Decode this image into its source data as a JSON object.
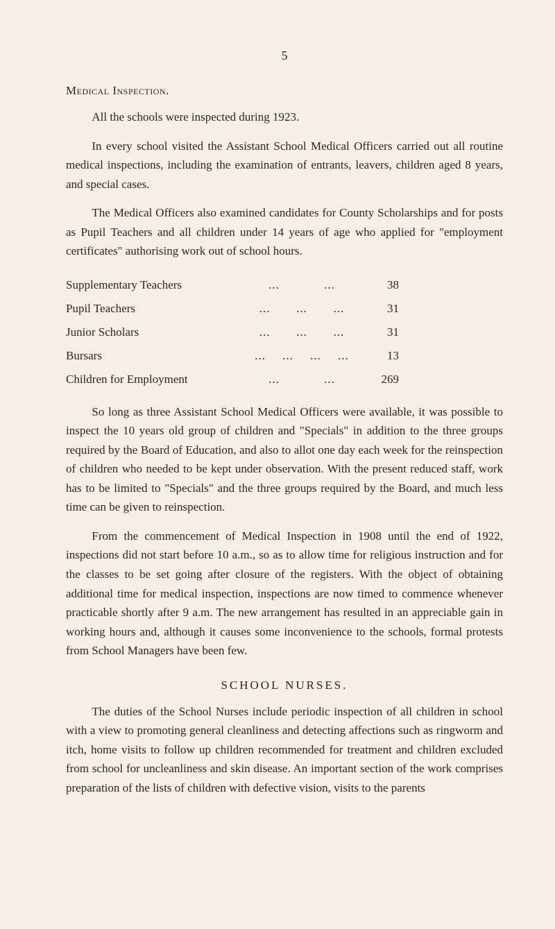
{
  "page": {
    "number": "5",
    "background_color": "#f5f0e6",
    "text_color": "#2a2620"
  },
  "heading1": "Medical Inspection.",
  "para1": "All the schools were inspected during 1923.",
  "para2": "In every school visited the Assistant School Medical Officers carried out all routine medical inspections, including the examination of entrants, leavers, children aged 8 years, and special cases.",
  "para3": "The Medical Officers also examined candidates for County Scholarships and for posts as Pupil Teachers and all children under 14 years of age who applied for \"employment certificates\" authorising work out of school hours.",
  "stats": {
    "rows": [
      {
        "label": "Supplementary Teachers",
        "dots": 2,
        "value": "38"
      },
      {
        "label": "Pupil Teachers",
        "dots": 3,
        "value": "31"
      },
      {
        "label": "Junior Scholars",
        "dots": 3,
        "value": "31"
      },
      {
        "label": "Bursars",
        "dots": 4,
        "value": "13"
      },
      {
        "label": "Children for Employment",
        "dots": 2,
        "value": "269"
      }
    ]
  },
  "para4": "So long as three Assistant School Medical Officers were available, it was possible to inspect the 10 years old group of children and \"Specials\" in addition to the three groups required by the Board of Education, and also to allot one day each week for the reinspection of children who needed to be kept under observation. With the present reduced staff, work has to be limited to \"Specials\" and the three groups required by the Board, and much less time can be given to reinspection.",
  "para5": "From the commencement of Medical Inspection in 1908 until the end of 1922, inspections did not start before 10 a.m., so as to allow time for religious instruction and for the classes to be set going after closure of the registers. With the object of obtaining additional time for medical inspection, inspections are now timed to commence whenever practicable shortly after 9 a.m. The new arrangement has resulted in an appreciable gain in working hours and, although it causes some inconvenience to the schools, formal protests from School Managers have been few.",
  "heading2": "SCHOOL NURSES.",
  "para6": "The duties of the School Nurses include periodic inspection of all children in school with a view to promoting general cleanliness and detecting affections such as ringworm and itch, home visits to follow up children recommended for treatment and children excluded from school for unclean­liness and skin disease. An important section of the work comprises preparation of the lists of children with defective vision, visits to the parents"
}
